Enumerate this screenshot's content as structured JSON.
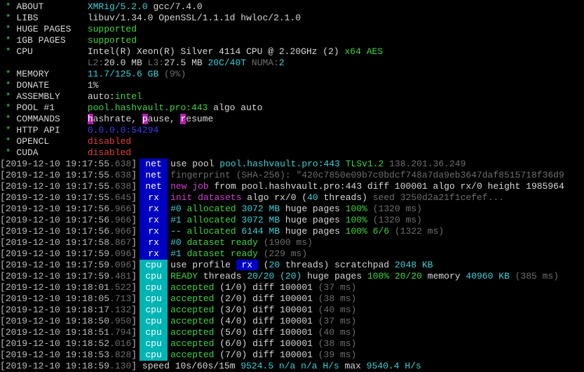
{
  "colors": {
    "net_tag": "#0000c0",
    "rx_tag": "#0000c0",
    "cpu_tag": "#00b4b4",
    "green": "#3fd43f",
    "cyan": "#3ad0d8",
    "magenta": "#d040d0",
    "red": "#e04040",
    "blue": "#3c3cf0",
    "grey": "#6e6e6e"
  },
  "header": [
    {
      "label": "ABOUT",
      "value": [
        [
          "XMRig/5.2.0",
          "c"
        ],
        [
          " gcc/7.4.0",
          "w"
        ]
      ]
    },
    {
      "label": "LIBS",
      "value": [
        [
          "libuv/1.34.0 OpenSSL/1.1.1d hwloc/2.1.0",
          "w"
        ]
      ]
    },
    {
      "label": "HUGE PAGES",
      "value": [
        [
          "supported",
          "g"
        ]
      ]
    },
    {
      "label": "1GB PAGES",
      "value": [
        [
          "supported",
          "g"
        ]
      ]
    },
    {
      "label": "CPU",
      "value": [
        [
          "Intel(R) Xeon(R) Silver 4114 CPU @ 2.20GHz (2)",
          "w"
        ],
        [
          " x64 AES",
          "g"
        ]
      ]
    },
    {
      "label": "",
      "value": [
        [
          "L2:",
          "d"
        ],
        [
          "20.0 MB",
          "w"
        ],
        [
          " L3:",
          "d"
        ],
        [
          "27.5 MB",
          "w"
        ],
        [
          " 20C/40T",
          "c"
        ],
        [
          " NUMA:",
          "d"
        ],
        [
          "2",
          "c"
        ]
      ]
    },
    {
      "label": "MEMORY",
      "value": [
        [
          "11.7/125.6 GB",
          "c"
        ],
        [
          " (9%)",
          "d"
        ]
      ]
    },
    {
      "label": "DONATE",
      "value": [
        [
          "1%",
          "w"
        ]
      ]
    },
    {
      "label": "ASSEMBLY",
      "value": [
        [
          "auto:",
          "w"
        ],
        [
          "intel",
          "g"
        ]
      ]
    },
    {
      "label": "POOL #1",
      "value": [
        [
          "pool.hashvault.pro:443",
          "g"
        ],
        [
          " algo auto",
          "w"
        ]
      ]
    },
    {
      "label": "COMMANDS",
      "value": [
        [
          "h",
          "mbg"
        ],
        [
          "ashrate, ",
          "w"
        ],
        [
          "p",
          "mbg"
        ],
        [
          "ause, ",
          "w"
        ],
        [
          "r",
          "mbg"
        ],
        [
          "esume",
          "w"
        ]
      ]
    },
    {
      "label": "HTTP API",
      "value": [
        [
          "0.0.0.0:54294",
          "b"
        ]
      ]
    },
    {
      "label": "OPENCL",
      "value": [
        [
          "disabled",
          "r"
        ]
      ]
    },
    {
      "label": "CUDA",
      "value": [
        [
          "disabled",
          "r"
        ]
      ]
    }
  ],
  "log": [
    {
      "ts": "2019-12-10 19:17:55",
      "ms": ".638",
      "tag": "net",
      "msg": [
        [
          "use pool ",
          "w"
        ],
        [
          "pool.hashvault.pro:443",
          "c"
        ],
        [
          " TLSv1.2",
          "g"
        ],
        [
          " 138.201.36.249",
          "d"
        ]
      ]
    },
    {
      "ts": "2019-12-10 19:17:55",
      "ms": ".638",
      "tag": "net",
      "msg": [
        [
          "fingerprint (SHA-256): \"420c7850e09b7c0bdcf748a7da9eb3647daf8515718f36d9",
          "d"
        ]
      ]
    },
    {
      "ts": "2019-12-10 19:17:55",
      "ms": ".638",
      "tag": "net",
      "msg": [
        [
          "new job",
          "m"
        ],
        [
          " from pool.hashvault.pro:443 diff 100001 algo rx/0 height 1985964",
          "w"
        ]
      ]
    },
    {
      "ts": "2019-12-10 19:17:55",
      "ms": ".645",
      "tag": "rx",
      "msg": [
        [
          "init datasets",
          "m"
        ],
        [
          " algo rx/0 (",
          "w"
        ],
        [
          "40",
          "c"
        ],
        [
          " threads)",
          "w"
        ],
        [
          " seed 3250d2a21f1cefef...",
          "d"
        ]
      ]
    },
    {
      "ts": "2019-12-10 19:17:56",
      "ms": ".966",
      "tag": "rx",
      "msg": [
        [
          "#0",
          "c"
        ],
        [
          " allocated ",
          "g"
        ],
        [
          "3072 MB",
          "c"
        ],
        [
          " huge pages ",
          "w"
        ],
        [
          "100%",
          "g"
        ],
        [
          " (1320 ms)",
          "d"
        ]
      ]
    },
    {
      "ts": "2019-12-10 19:17:56",
      "ms": ".966",
      "tag": "rx",
      "msg": [
        [
          "#1",
          "c"
        ],
        [
          " allocated ",
          "g"
        ],
        [
          "3072 MB",
          "c"
        ],
        [
          " huge pages ",
          "w"
        ],
        [
          "100%",
          "g"
        ],
        [
          " (1320 ms)",
          "d"
        ]
      ]
    },
    {
      "ts": "2019-12-10 19:17:56",
      "ms": ".966",
      "tag": "rx",
      "msg": [
        [
          "--",
          "c"
        ],
        [
          " allocated ",
          "g"
        ],
        [
          "6144 MB",
          "c"
        ],
        [
          " huge pages ",
          "w"
        ],
        [
          "100% 6/6",
          "g"
        ],
        [
          " (1322 ms)",
          "d"
        ]
      ]
    },
    {
      "ts": "2019-12-10 19:17:58",
      "ms": ".867",
      "tag": "rx",
      "msg": [
        [
          "#0",
          "c"
        ],
        [
          " dataset ready",
          "g"
        ],
        [
          " (1900 ms)",
          "d"
        ]
      ]
    },
    {
      "ts": "2019-12-10 19:17:59",
      "ms": ".096",
      "tag": "rx",
      "msg": [
        [
          "#1",
          "c"
        ],
        [
          " dataset ready",
          "g"
        ],
        [
          " (229 ms)",
          "d"
        ]
      ]
    },
    {
      "ts": "2019-12-10 19:17:59",
      "ms": ".096",
      "tag": "cpu",
      "msg": [
        [
          "use profile ",
          "w"
        ],
        [
          " rx ",
          "bbg"
        ],
        [
          " (",
          "w"
        ],
        [
          "20",
          "c"
        ],
        [
          " threads)",
          "w"
        ],
        [
          " scratchpad ",
          "w"
        ],
        [
          "2048 KB",
          "c"
        ]
      ]
    },
    {
      "ts": "2019-12-10 19:17:59",
      "ms": ".481",
      "tag": "cpu",
      "msg": [
        [
          "READY",
          "g"
        ],
        [
          " threads ",
          "w"
        ],
        [
          "20/20 (20)",
          "c"
        ],
        [
          " huge pages ",
          "w"
        ],
        [
          "100% 20/20",
          "g"
        ],
        [
          " memory ",
          "w"
        ],
        [
          "40960 KB",
          "c"
        ],
        [
          " (385 ms)",
          "d"
        ]
      ]
    },
    {
      "ts": "2019-12-10 19:18:01",
      "ms": ".522",
      "tag": "cpu",
      "msg": [
        [
          "accepted",
          "g"
        ],
        [
          " (1/0) diff 100001",
          "w"
        ],
        [
          " (37 ms)",
          "d"
        ]
      ]
    },
    {
      "ts": "2019-12-10 19:18:05",
      "ms": ".713",
      "tag": "cpu",
      "msg": [
        [
          "accepted",
          "g"
        ],
        [
          " (2/0) diff 100001",
          "w"
        ],
        [
          " (38 ms)",
          "d"
        ]
      ]
    },
    {
      "ts": "2019-12-10 19:18:17",
      "ms": ".132",
      "tag": "cpu",
      "msg": [
        [
          "accepted",
          "g"
        ],
        [
          " (3/0) diff 100001",
          "w"
        ],
        [
          " (40 ms)",
          "d"
        ]
      ]
    },
    {
      "ts": "2019-12-10 19:18:50",
      "ms": ".950",
      "tag": "cpu",
      "msg": [
        [
          "accepted",
          "g"
        ],
        [
          " (4/0) diff 100001",
          "w"
        ],
        [
          " (37 ms)",
          "d"
        ]
      ]
    },
    {
      "ts": "2019-12-10 19:18:51",
      "ms": ".794",
      "tag": "cpu",
      "msg": [
        [
          "accepted",
          "g"
        ],
        [
          " (5/0) diff 100001",
          "w"
        ],
        [
          " (40 ms)",
          "d"
        ]
      ]
    },
    {
      "ts": "2019-12-10 19:18:52",
      "ms": ".016",
      "tag": "cpu",
      "msg": [
        [
          "accepted",
          "g"
        ],
        [
          " (6/0) diff 100001",
          "w"
        ],
        [
          " (38 ms)",
          "d"
        ]
      ]
    },
    {
      "ts": "2019-12-10 19:18:53",
      "ms": ".828",
      "tag": "cpu",
      "msg": [
        [
          "accepted",
          "g"
        ],
        [
          " (7/0) diff 100001",
          "w"
        ],
        [
          " (39 ms)",
          "d"
        ]
      ]
    },
    {
      "ts": "2019-12-10 19:18:59",
      "ms": ".130",
      "tag": "",
      "msg": [
        [
          "speed 10s/60s/15m ",
          "w"
        ],
        [
          "9524.5 n/a n/a H/s",
          "c"
        ],
        [
          " max ",
          "w"
        ],
        [
          "9540.4 H/s",
          "c"
        ]
      ]
    }
  ]
}
